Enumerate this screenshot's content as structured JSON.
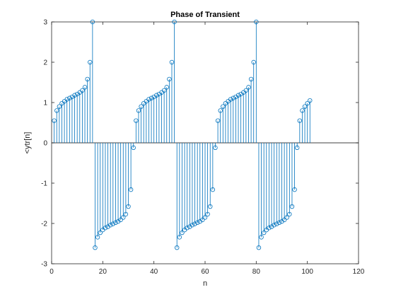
{
  "chart_data": {
    "type": "stem",
    "title": "Phase of Transient",
    "xlabel": "n",
    "ylabel": "<ytr[n]",
    "xlim": [
      0,
      120
    ],
    "ylim": [
      -3,
      3
    ],
    "x_ticks": [
      0,
      20,
      40,
      60,
      80,
      100,
      120
    ],
    "y_ticks": [
      -3,
      -2,
      -1,
      0,
      1,
      2,
      3
    ],
    "grid": false,
    "baseline": 0,
    "color": "#0072bd",
    "marker": "circle",
    "series": [
      {
        "x": [
          1,
          2,
          3,
          4,
          5,
          6,
          7,
          8,
          9,
          10,
          11,
          12,
          13,
          14,
          15,
          16,
          17,
          18,
          19,
          20,
          21,
          22,
          23,
          24,
          25,
          26,
          27,
          28,
          29,
          30,
          31,
          32,
          33,
          34,
          35,
          36,
          37,
          38,
          39,
          40,
          41,
          42,
          43,
          44,
          45,
          46,
          47,
          48,
          49,
          50,
          51,
          52,
          53,
          54,
          55,
          56,
          57,
          58,
          59,
          60,
          61,
          62,
          63,
          64,
          65,
          66,
          67,
          68,
          69,
          70,
          71,
          72,
          73,
          74,
          75,
          76,
          77,
          78,
          79,
          80,
          81,
          82,
          83,
          84,
          85,
          86,
          87,
          88,
          89,
          90,
          91,
          92,
          93,
          94,
          95,
          96,
          97,
          98,
          99,
          100,
          101
        ],
        "y": [
          0.55,
          0.8,
          0.9,
          0.98,
          1.03,
          1.08,
          1.11,
          1.14,
          1.18,
          1.21,
          1.25,
          1.3,
          1.38,
          1.58,
          2.0,
          3.0,
          -2.6,
          -2.34,
          -2.23,
          -2.16,
          -2.11,
          -2.08,
          -2.04,
          -2.01,
          -1.98,
          -1.95,
          -1.91,
          -1.85,
          -1.77,
          -1.58,
          -1.16,
          -0.12,
          0.55,
          0.8,
          0.9,
          0.98,
          1.03,
          1.08,
          1.11,
          1.14,
          1.18,
          1.21,
          1.25,
          1.3,
          1.38,
          1.58,
          2.0,
          3.0,
          -2.6,
          -2.34,
          -2.23,
          -2.16,
          -2.11,
          -2.08,
          -2.04,
          -2.01,
          -1.98,
          -1.95,
          -1.91,
          -1.85,
          -1.77,
          -1.58,
          -1.16,
          -0.12,
          0.55,
          0.8,
          0.9,
          0.98,
          1.03,
          1.08,
          1.11,
          1.14,
          1.18,
          1.21,
          1.25,
          1.3,
          1.38,
          1.58,
          2.0,
          3.0,
          -2.6,
          -2.34,
          -2.23,
          -2.16,
          -2.11,
          -2.08,
          -2.04,
          -2.01,
          -1.98,
          -1.95,
          -1.91,
          -1.85,
          -1.77,
          -1.58,
          -1.16,
          -0.12,
          0.55,
          0.8,
          0.9,
          0.98,
          1.05
        ]
      }
    ]
  }
}
